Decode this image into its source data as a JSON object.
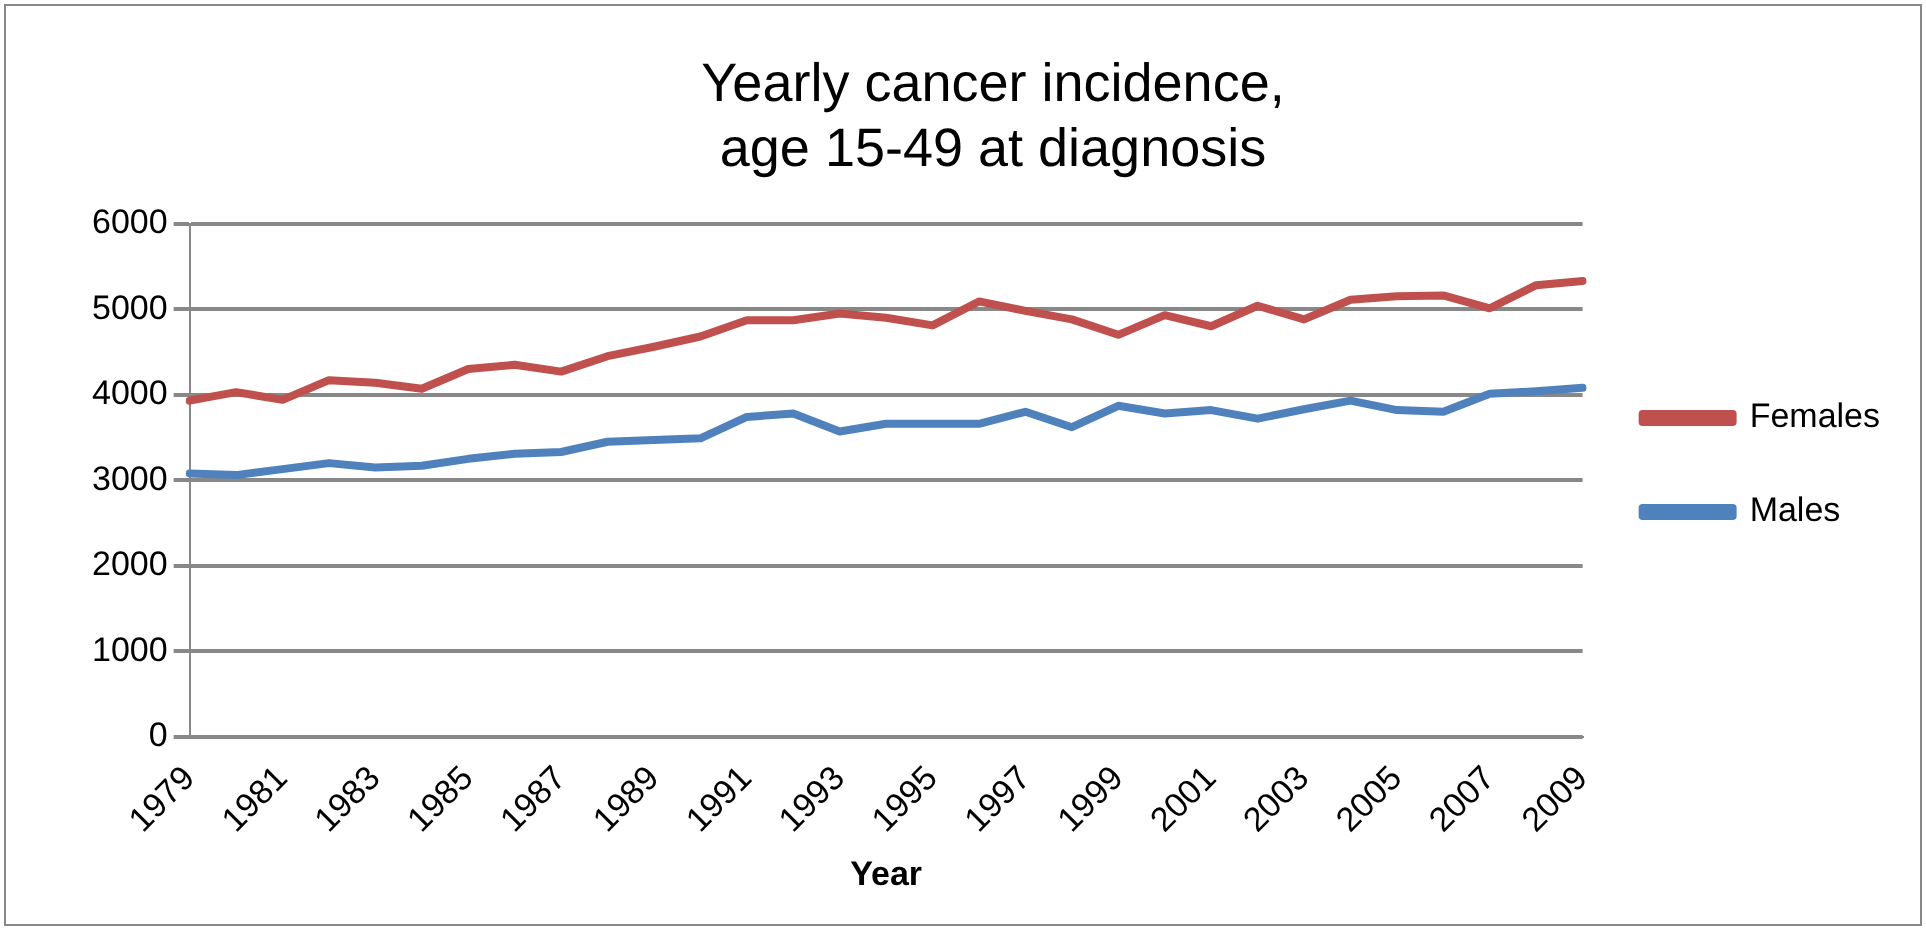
{
  "chart_data": {
    "type": "line",
    "title": "Yearly cancer incidence,\nage 15-49 at diagnosis",
    "xlabel": "Year",
    "categories": [
      "1979",
      null,
      "1981",
      null,
      "1983",
      null,
      "1985",
      null,
      "1987",
      null,
      "1989",
      null,
      "1991",
      null,
      "1993",
      null,
      "1995",
      null,
      "1997",
      null,
      "1999",
      null,
      "2001",
      null,
      "2003",
      null,
      "2005",
      null,
      "2007",
      null,
      "2009"
    ],
    "series": [
      {
        "name": "Females",
        "color": "#c0504d",
        "values": [
          3930,
          4030,
          3940,
          4170,
          4140,
          4070,
          4300,
          4350,
          4270,
          4450,
          4560,
          4680,
          4870,
          4870,
          4950,
          4900,
          4810,
          5090,
          4980,
          4880,
          4700,
          4930,
          4800,
          5040,
          4880,
          5110,
          5150,
          5160,
          5010,
          5280,
          5330
        ]
      },
      {
        "name": "Males",
        "color": "#4f81bd",
        "values": [
          3080,
          3060,
          3130,
          3200,
          3150,
          3170,
          3250,
          3310,
          3330,
          3450,
          3470,
          3490,
          3740,
          3780,
          3570,
          3660,
          3660,
          3660,
          3800,
          3620,
          3870,
          3780,
          3820,
          3720,
          3830,
          3930,
          3820,
          3800,
          4010,
          4040,
          4080
        ]
      }
    ],
    "ylim": [
      0,
      6000
    ],
    "yticks": [
      0,
      1000,
      2000,
      3000,
      4000,
      5000,
      6000
    ],
    "grid": "y",
    "legend": "right",
    "marker": "none",
    "line_style": "solid"
  }
}
